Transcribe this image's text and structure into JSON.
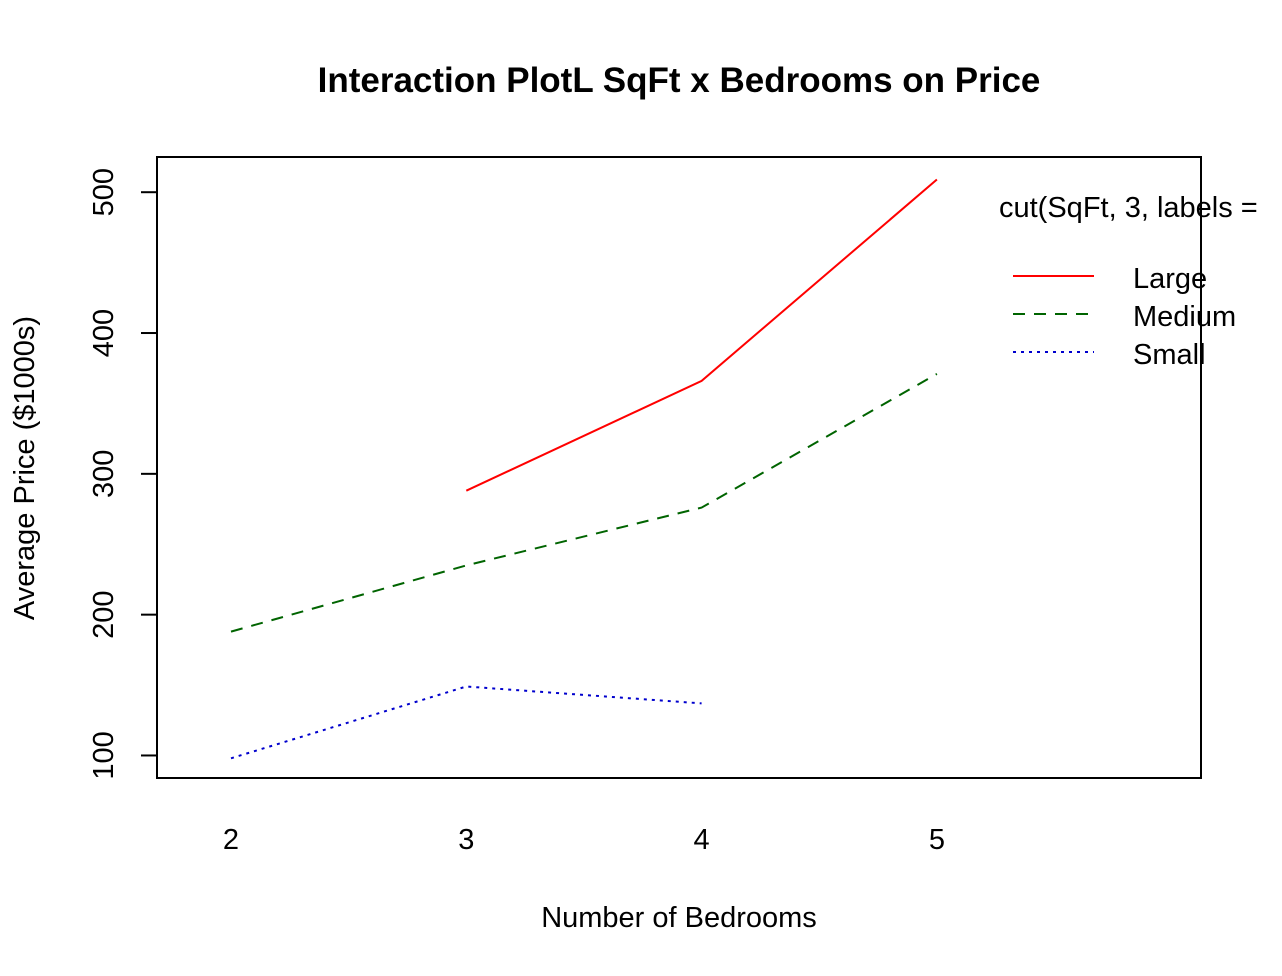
{
  "chart_data": {
    "type": "line",
    "title": "Interaction PlotL SqFt x Bedrooms on Price",
    "xlabel": "Number of Bedrooms",
    "ylabel": "Average Price ($1000s)",
    "categories": [
      "2",
      "3",
      "4",
      "5"
    ],
    "y_ticks": [
      "100",
      "200",
      "300",
      "400",
      "500"
    ],
    "ylim": [
      84,
      525
    ],
    "grid": false,
    "legend": {
      "title": "cut(SqFt, 3, labels =",
      "placement": "top-right"
    },
    "series": [
      {
        "name": "Large",
        "color": "#ff0000",
        "dash": "solid",
        "values": [
          null,
          288,
          366,
          509
        ]
      },
      {
        "name": "Medium",
        "color": "#006400",
        "dash": "dashed",
        "values": [
          188,
          235,
          276,
          371
        ]
      },
      {
        "name": "Small",
        "color": "#0000cd",
        "dash": "dotted",
        "values": [
          98,
          149,
          137,
          null
        ]
      }
    ]
  }
}
